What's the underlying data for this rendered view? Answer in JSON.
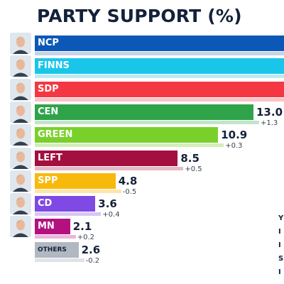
{
  "chart_data": {
    "type": "bar",
    "title": "PARTY SUPPORT (%)",
    "categories": [
      "NCP",
      "FINNS",
      "SDP",
      "CEN",
      "GREEN",
      "LEFT",
      "SPP",
      "CD",
      "MN",
      "OTHERS"
    ],
    "values": [
      null,
      null,
      null,
      13.0,
      10.9,
      8.5,
      4.8,
      3.6,
      2.1,
      2.6
    ],
    "value_labels": [
      "",
      "",
      "",
      "13.0",
      "10.9",
      "8.5",
      "4.8",
      "3.6",
      "2.1",
      "2.6"
    ],
    "changes": [
      null,
      null,
      null,
      "+1.3",
      "+0.3",
      "+0.5",
      "-0.5",
      "+0.4",
      "+0.2",
      "-0.2"
    ],
    "colors": [
      "#0b58b6",
      "#19c6ea",
      "#f43843",
      "#2ea34a",
      "#79d02a",
      "#a3103f",
      "#f7b90b",
      "#7f49e3",
      "#b3117f",
      "#b1b8c1"
    ],
    "change_colors": [
      "#c4d3e8",
      "#bdeaf5",
      "#f9c4c6",
      "#c2e5c9",
      "#d3eeb9",
      "#e5b9c8",
      "#fde5ac",
      "#d8c6f6",
      "#ebb6da",
      "#dfe3e8"
    ],
    "truncated_bars": [
      "NCP",
      "FINNS",
      "SDP"
    ],
    "xlim": [
      0,
      13.0
    ]
  },
  "right_fragments": [
    "Y",
    "I",
    "I",
    "S",
    "I"
  ]
}
